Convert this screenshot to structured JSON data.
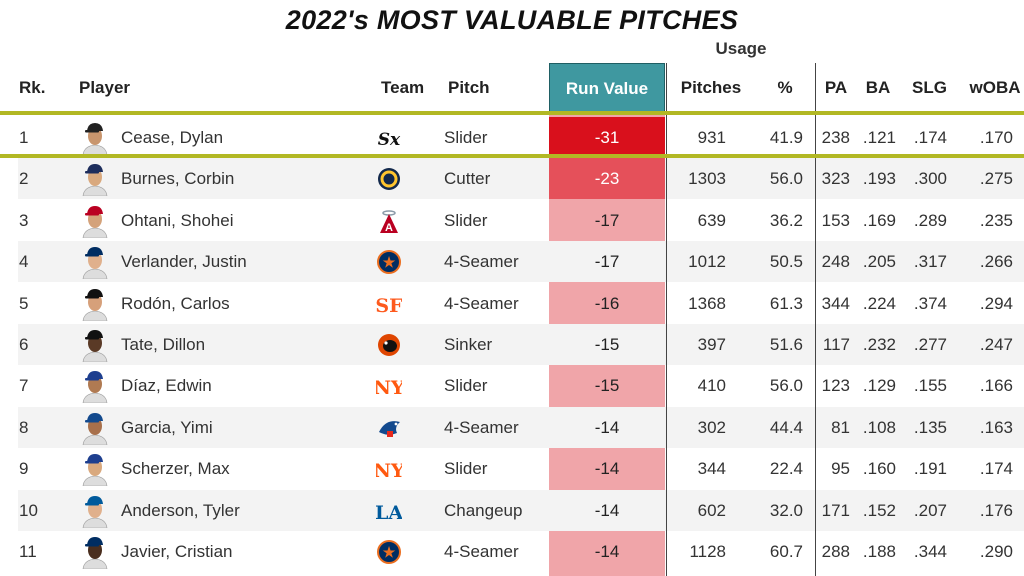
{
  "title": "2022's MOST VALUABLE PITCHES",
  "usage_label": "Usage",
  "headers": {
    "rank": "Rk.",
    "player": "Player",
    "team": "Team",
    "pitch": "Pitch",
    "run_value": "Run Value",
    "pitches": "Pitches",
    "pct": "%",
    "pa": "PA",
    "ba": "BA",
    "slg": "SLG",
    "woba": "wOBA"
  },
  "colors": {
    "highlight": "#b2b824",
    "run_value_header": "#3f98a0",
    "run_value_strong": "#d9101c",
    "run_value_medium": "#e5505a",
    "run_value_light": "#f0a5a9"
  },
  "rows": [
    {
      "rank": "1",
      "player": "Cease, Dylan",
      "team_icon": "white-sox-logo-icon",
      "pitch": "Slider",
      "run_value": "-31",
      "pitches": "931",
      "pct": "41.9",
      "pa": "238",
      "ba": ".121",
      "slg": ".174",
      "woba": ".170"
    },
    {
      "rank": "2",
      "player": "Burnes, Corbin",
      "team_icon": "brewers-logo-icon",
      "pitch": "Cutter",
      "run_value": "-23",
      "pitches": "1303",
      "pct": "56.0",
      "pa": "323",
      "ba": ".193",
      "slg": ".300",
      "woba": ".275"
    },
    {
      "rank": "3",
      "player": "Ohtani, Shohei",
      "team_icon": "angels-logo-icon",
      "pitch": "Slider",
      "run_value": "-17",
      "pitches": "639",
      "pct": "36.2",
      "pa": "153",
      "ba": ".169",
      "slg": ".289",
      "woba": ".235"
    },
    {
      "rank": "4",
      "player": "Verlander, Justin",
      "team_icon": "astros-logo-icon",
      "pitch": "4-Seamer",
      "run_value": "-17",
      "pitches": "1012",
      "pct": "50.5",
      "pa": "248",
      "ba": ".205",
      "slg": ".317",
      "woba": ".266"
    },
    {
      "rank": "5",
      "player": "Rodón, Carlos",
      "team_icon": "giants-logo-icon",
      "pitch": "4-Seamer",
      "run_value": "-16",
      "pitches": "1368",
      "pct": "61.3",
      "pa": "344",
      "ba": ".224",
      "slg": ".374",
      "woba": ".294"
    },
    {
      "rank": "6",
      "player": "Tate, Dillon",
      "team_icon": "orioles-logo-icon",
      "pitch": "Sinker",
      "run_value": "-15",
      "pitches": "397",
      "pct": "51.6",
      "pa": "117",
      "ba": ".232",
      "slg": ".277",
      "woba": ".247"
    },
    {
      "rank": "7",
      "player": "Díaz, Edwin",
      "team_icon": "mets-logo-icon",
      "pitch": "Slider",
      "run_value": "-15",
      "pitches": "410",
      "pct": "56.0",
      "pa": "123",
      "ba": ".129",
      "slg": ".155",
      "woba": ".166"
    },
    {
      "rank": "8",
      "player": "Garcia, Yimi",
      "team_icon": "blue-jays-logo-icon",
      "pitch": "4-Seamer",
      "run_value": "-14",
      "pitches": "302",
      "pct": "44.4",
      "pa": "81",
      "ba": ".108",
      "slg": ".135",
      "woba": ".163"
    },
    {
      "rank": "9",
      "player": "Scherzer, Max",
      "team_icon": "mets-logo-icon",
      "pitch": "Slider",
      "run_value": "-14",
      "pitches": "344",
      "pct": "22.4",
      "pa": "95",
      "ba": ".160",
      "slg": ".191",
      "woba": ".174"
    },
    {
      "rank": "10",
      "player": "Anderson, Tyler",
      "team_icon": "dodgers-logo-icon",
      "pitch": "Changeup",
      "run_value": "-14",
      "pitches": "602",
      "pct": "32.0",
      "pa": "171",
      "ba": ".152",
      "slg": ".207",
      "woba": ".176"
    },
    {
      "rank": "11",
      "player": "Javier, Cristian",
      "team_icon": "astros-logo-icon",
      "pitch": "4-Seamer",
      "run_value": "-14",
      "pitches": "1128",
      "pct": "60.7",
      "pa": "288",
      "ba": ".188",
      "slg": ".344",
      "woba": ".290"
    }
  ]
}
